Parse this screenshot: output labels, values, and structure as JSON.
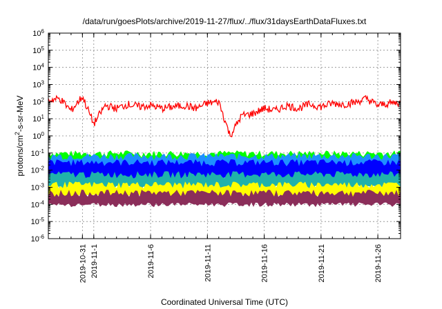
{
  "chart_data": {
    "type": "line",
    "title": "/data/run/goesPlots/archive/2019-11-27/flux/../flux/31daysEarthDataFluxes.txt",
    "xlabel": "Coordinated Universal Time (UTC)",
    "ylabel": {
      "prefix": "protons/cm",
      "sup": "2",
      "suffix": "-s-sr-MeV"
    },
    "y_scale": "log",
    "ylim": [
      1e-06,
      1000000.0
    ],
    "y_ticks": [
      {
        "base": "10",
        "exp": "-6"
      },
      {
        "base": "10",
        "exp": "-5"
      },
      {
        "base": "10",
        "exp": "-4"
      },
      {
        "base": "10",
        "exp": "-3"
      },
      {
        "base": "10",
        "exp": "-2"
      },
      {
        "base": "10",
        "exp": "-1"
      },
      {
        "base": "10",
        "exp": "0"
      },
      {
        "base": "10",
        "exp": "1"
      },
      {
        "base": "10",
        "exp": "2"
      },
      {
        "base": "10",
        "exp": "3"
      },
      {
        "base": "10",
        "exp": "4"
      },
      {
        "base": "10",
        "exp": "5"
      },
      {
        "base": "10",
        "exp": "6"
      }
    ],
    "xlim": [
      "2019-10-28",
      "2019-11-28"
    ],
    "x_ticks": [
      "2019-10-31",
      "2019-11-1",
      "2019-11-6",
      "2019-11-11",
      "2019-11-16",
      "2019-11-21",
      "2019-11-26"
    ],
    "grid": true,
    "series": [
      {
        "color": "#ff0000",
        "style": "line",
        "x": [
          "2019-10-28",
          "2019-10-29",
          "2019-10-30",
          "2019-10-31",
          "2019-11-01",
          "2019-11-02",
          "2019-11-03",
          "2019-11-04",
          "2019-11-05",
          "2019-11-06",
          "2019-11-07",
          "2019-11-08",
          "2019-11-09",
          "2019-11-10",
          "2019-11-11",
          "2019-11-12",
          "2019-11-13",
          "2019-11-14",
          "2019-11-15",
          "2019-11-16",
          "2019-11-17",
          "2019-11-18",
          "2019-11-19",
          "2019-11-20",
          "2019-11-21",
          "2019-11-22",
          "2019-11-23",
          "2019-11-24",
          "2019-11-25",
          "2019-11-26",
          "2019-11-27",
          "2019-11-28"
        ],
        "values": [
          120,
          150,
          30,
          200,
          5,
          60,
          40,
          70,
          50,
          60,
          40,
          50,
          60,
          40,
          80,
          100,
          1,
          15,
          20,
          40,
          30,
          60,
          40,
          70,
          50,
          80,
          70,
          90,
          150,
          60,
          80,
          90
        ]
      },
      {
        "color": "#00ff00",
        "style": "band",
        "low": 0.005,
        "high": 0.1
      },
      {
        "color": "#1e90ff",
        "style": "band",
        "low": 0.004,
        "high": 0.07
      },
      {
        "color": "#0000ff",
        "style": "band",
        "low": 0.003,
        "high": 0.03
      },
      {
        "color": "#20b2aa",
        "style": "band",
        "low": 0.001,
        "high": 0.006
      },
      {
        "color": "#ffff00",
        "style": "band",
        "low": 0.0003,
        "high": 0.0015
      },
      {
        "color": "#8b2e5a",
        "style": "band",
        "low": 0.0001,
        "high": 0.0005
      }
    ]
  }
}
